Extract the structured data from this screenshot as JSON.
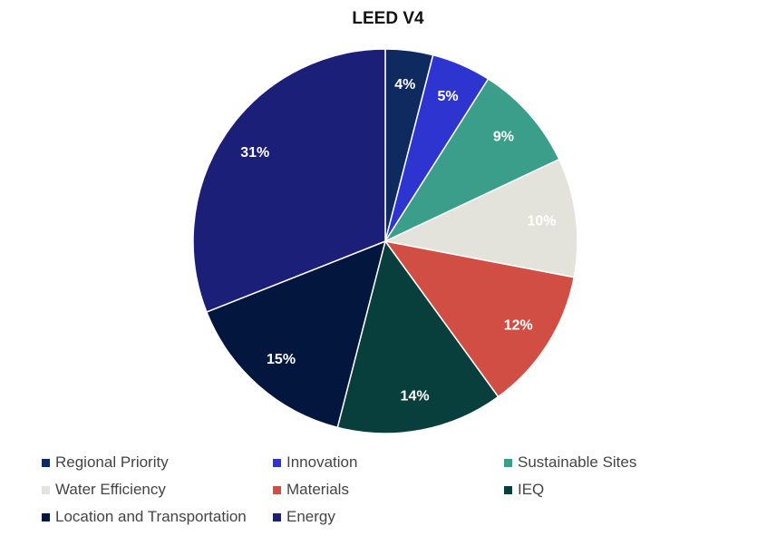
{
  "chart_data": {
    "type": "pie",
    "title": "LEED V4",
    "legend_position": "bottom",
    "slices": [
      {
        "name": "Regional Priority",
        "value": 4,
        "label": "4%",
        "color": "#0f2a5e",
        "label_color": "#ffffff"
      },
      {
        "name": "Innovation",
        "value": 5,
        "label": "5%",
        "color": "#2d34d0",
        "label_color": "#ffffff"
      },
      {
        "name": "Sustainable Sites",
        "value": 9,
        "label": "9%",
        "color": "#3a9e8a",
        "label_color": "#ffffff"
      },
      {
        "name": "Water Efficiency",
        "value": 10,
        "label": "10%",
        "color": "#e3e3dc",
        "label_color": "#ffffff"
      },
      {
        "name": "Materials",
        "value": 12,
        "label": "12%",
        "color": "#d04e43",
        "label_color": "#ffffff"
      },
      {
        "name": "IEQ",
        "value": 14,
        "label": "14%",
        "color": "#083f3c",
        "label_color": "#ffffff"
      },
      {
        "name": "Location and Transportation",
        "value": 15,
        "label": "15%",
        "color": "#03163e",
        "label_color": "#ffffff"
      },
      {
        "name": "Energy",
        "value": 31,
        "label": "31%",
        "color": "#1c1f77",
        "label_color": "#ffffff"
      }
    ]
  }
}
